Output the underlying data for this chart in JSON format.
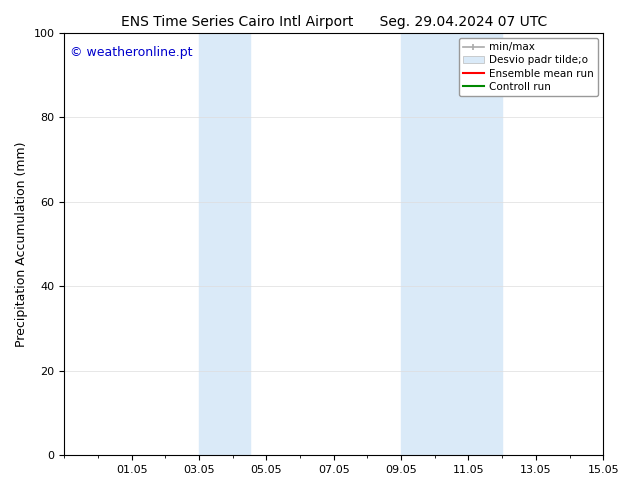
{
  "title": "ENS Time Series Cairo Intl Airport      Seg. 29.04.2024 07 UTC",
  "ylabel": "Precipitation Accumulation (mm)",
  "watermark": "© weatheronline.pt",
  "watermark_color": "#0000cc",
  "ylim": [
    0,
    100
  ],
  "yticks": [
    0,
    20,
    40,
    60,
    80,
    100
  ],
  "xlim": [
    0,
    16
  ],
  "xtick_labels": [
    "01.05",
    "03.05",
    "05.05",
    "07.05",
    "09.05",
    "11.05",
    "13.05",
    "15.05"
  ],
  "xtick_positions": [
    2,
    4,
    6,
    8,
    10,
    12,
    14,
    16
  ],
  "shaded_bands": [
    {
      "x_start": 4.0,
      "x_end": 5.5
    },
    {
      "x_start": 10.0,
      "x_end": 13.0
    }
  ],
  "shaded_color": "#daeaf8",
  "bg_color": "#ffffff",
  "legend_label_minmax": "min/max",
  "legend_label_desvio": "Desvio padr tilde;o",
  "legend_label_ensemble": "Ensemble mean run",
  "legend_label_controll": "Controll run",
  "color_minmax": "#aaaaaa",
  "color_desvio": "#daeaf8",
  "color_ensemble": "#ff0000",
  "color_controll": "#008800",
  "title_fontsize": 10,
  "axis_fontsize": 9,
  "tick_fontsize": 8,
  "legend_fontsize": 7.5,
  "watermark_fontsize": 9
}
